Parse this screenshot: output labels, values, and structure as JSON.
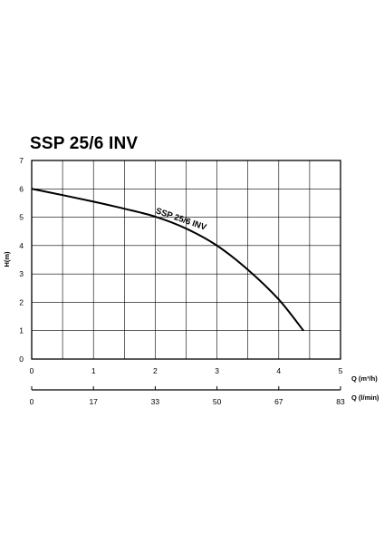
{
  "chart_data": {
    "type": "line",
    "title": "SSP 25/6 INV",
    "ylabel": "H(m)",
    "xlabel": "Q (m³/h)",
    "xlabel2": "Q (l/min)",
    "xlim": [
      0,
      5
    ],
    "ylim": [
      0,
      7
    ],
    "grid": true,
    "x_ticks": [
      "0",
      "1",
      "2",
      "3",
      "4",
      "5"
    ],
    "y_ticks": [
      "0",
      "1",
      "2",
      "3",
      "4",
      "5",
      "6",
      "7"
    ],
    "x2_ticks": [
      {
        "q": 0,
        "label": "0"
      },
      {
        "q": 1,
        "label": "17"
      },
      {
        "q": 2,
        "label": "33"
      },
      {
        "q": 3,
        "label": "50"
      },
      {
        "q": 4,
        "label": "67"
      },
      {
        "q": 5,
        "label": "83"
      }
    ],
    "series": [
      {
        "name": "SSP 25/6 INV",
        "color": "#000000",
        "x": [
          0,
          0.5,
          1.0,
          1.5,
          2.0,
          2.5,
          3.0,
          3.5,
          4.0,
          4.4
        ],
        "y": [
          6.0,
          5.78,
          5.55,
          5.3,
          5.02,
          4.6,
          4.0,
          3.15,
          2.1,
          1.0
        ]
      }
    ]
  }
}
